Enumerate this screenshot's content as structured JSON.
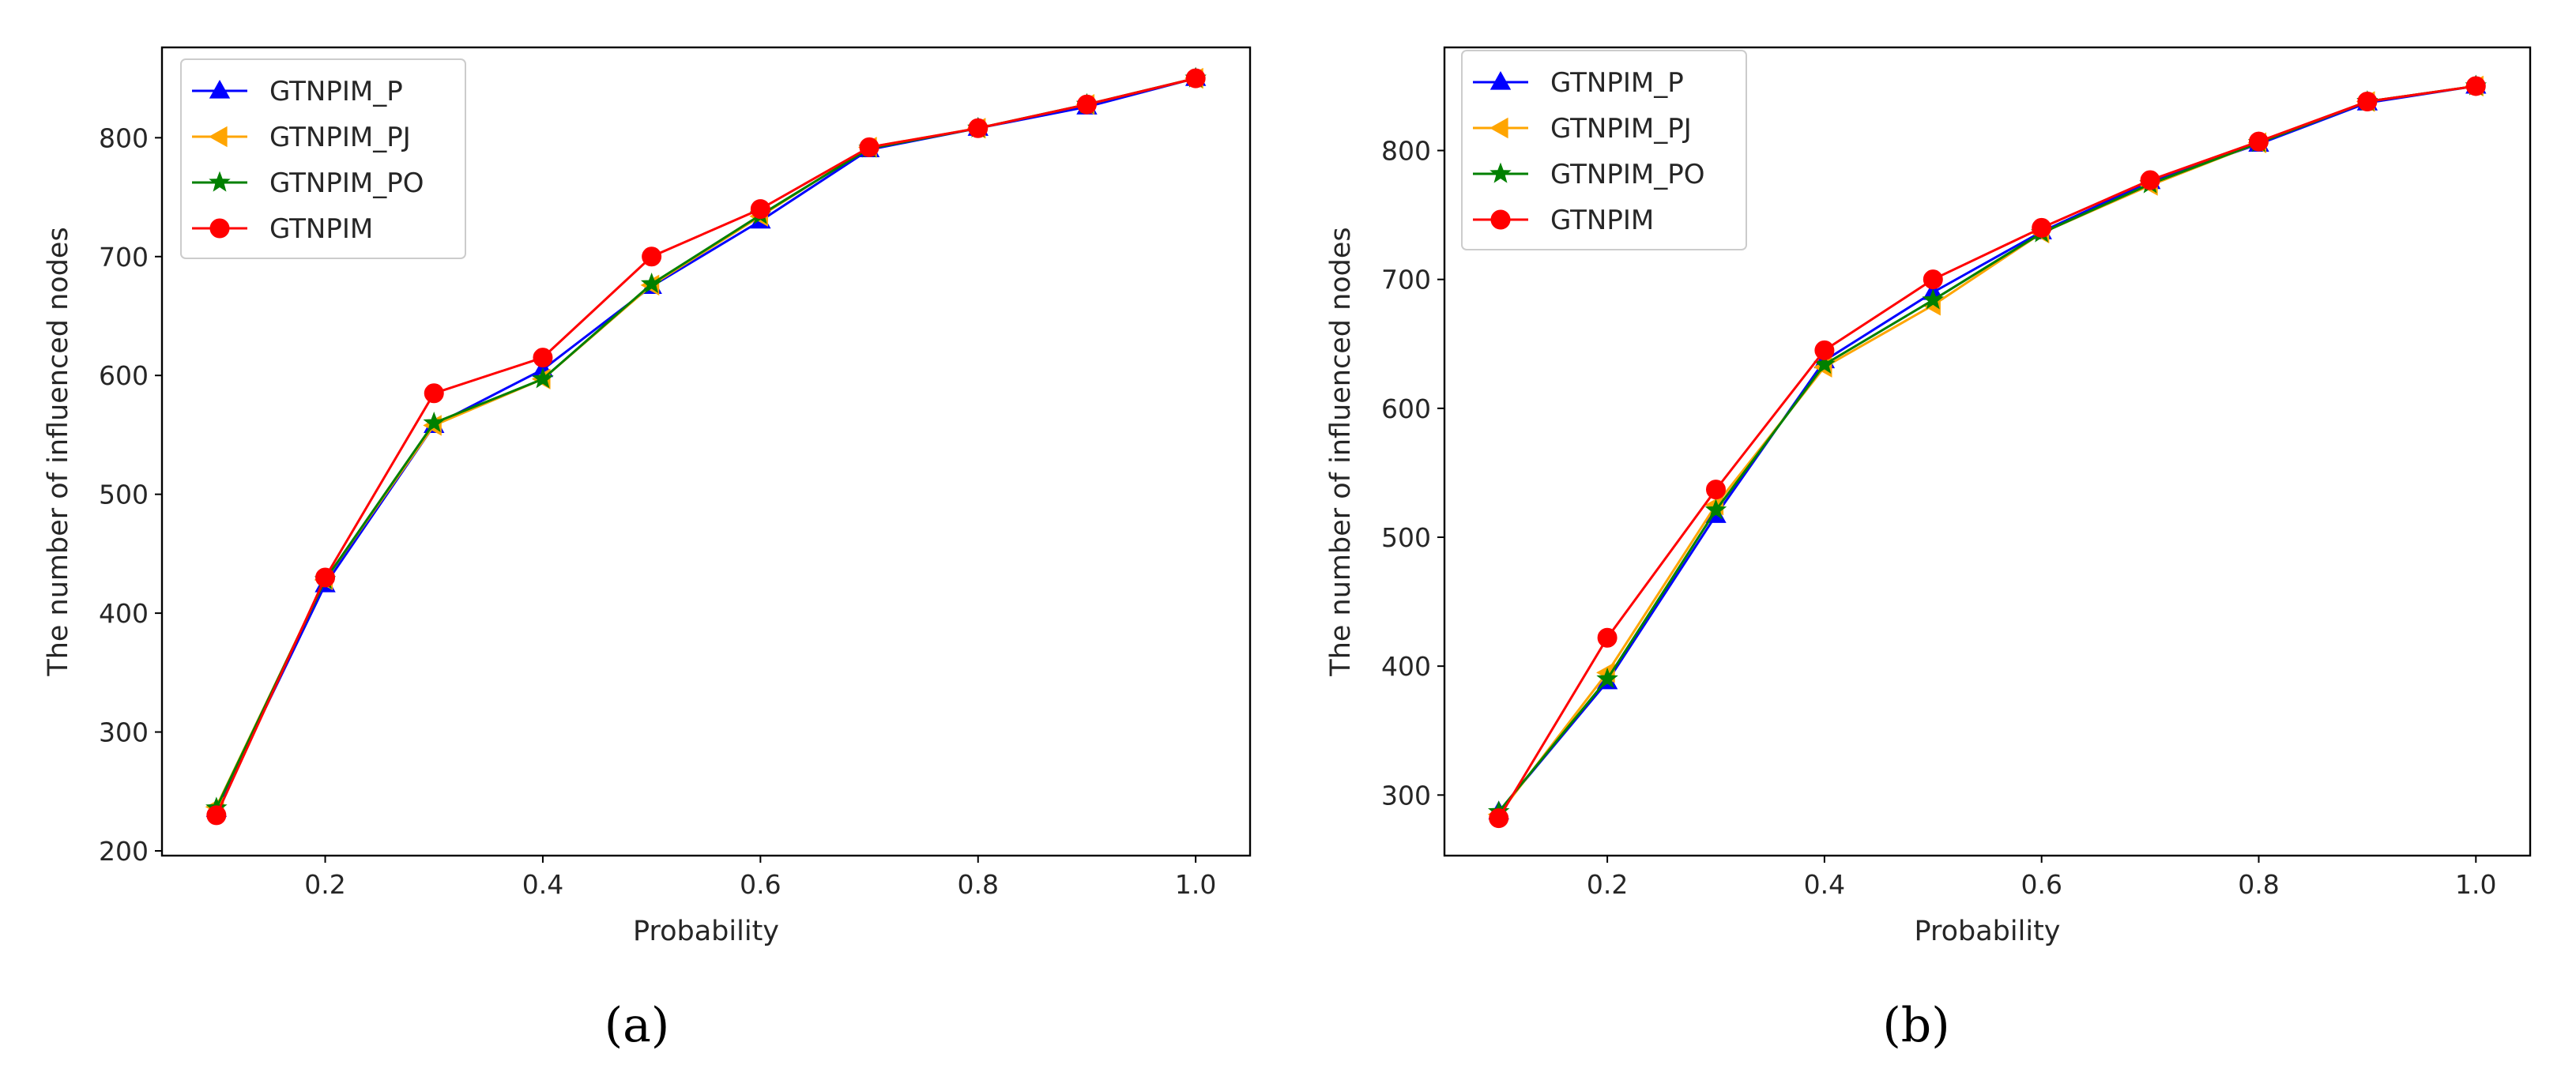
{
  "chart_data": [
    {
      "type": "line",
      "caption": "(a)",
      "xlabel": "Probability",
      "ylabel": "The number of influenced nodes",
      "xlim": [
        0.05,
        1.05
      ],
      "ylim": [
        196,
        876
      ],
      "xticks": [
        0.2,
        0.4,
        0.6,
        0.8,
        1.0
      ],
      "xtick_labels": [
        "0.2",
        "0.4",
        "0.6",
        "0.8",
        "1.0"
      ],
      "yticks": [
        200,
        300,
        400,
        500,
        600,
        700,
        800
      ],
      "ytick_labels": [
        "200",
        "300",
        "400",
        "500",
        "600",
        "700",
        "800"
      ],
      "legend_position": "upper-left",
      "x": [
        0.1,
        0.2,
        0.3,
        0.4,
        0.5,
        0.6,
        0.7,
        0.8,
        0.9,
        1.0
      ],
      "series": [
        {
          "name": "GTNPIM_P",
          "color": "#0000ff",
          "marker": "triangle-up",
          "values": [
            235,
            424,
            558,
            605,
            675,
            730,
            790,
            808,
            826,
            850
          ]
        },
        {
          "name": "GTNPIM_PJ",
          "color": "#ffa500",
          "marker": "triangle-left",
          "values": [
            237,
            428,
            558,
            597,
            676,
            734,
            792,
            808,
            828,
            850
          ]
        },
        {
          "name": "GTNPIM_PO",
          "color": "#008000",
          "marker": "star",
          "values": [
            236,
            428,
            560,
            597,
            677,
            735,
            791,
            808,
            828,
            850
          ]
        },
        {
          "name": "GTNPIM",
          "color": "#ff0000",
          "marker": "circle",
          "values": [
            230,
            430,
            585,
            615,
            700,
            740,
            792,
            808,
            828,
            850
          ]
        }
      ]
    },
    {
      "type": "line",
      "caption": "(b)",
      "xlabel": "Probability",
      "ylabel": "The number of influenced nodes",
      "xlim": [
        0.05,
        1.05
      ],
      "ylim": [
        253,
        880
      ],
      "xticks": [
        0.2,
        0.4,
        0.6,
        0.8,
        1.0
      ],
      "xtick_labels": [
        "0.2",
        "0.4",
        "0.6",
        "0.8",
        "1.0"
      ],
      "yticks": [
        300,
        400,
        500,
        600,
        700,
        800
      ],
      "ytick_labels": [
        "300",
        "400",
        "500",
        "600",
        "700",
        "800"
      ],
      "legend_position": "upper-left",
      "x": [
        0.1,
        0.2,
        0.3,
        0.4,
        0.5,
        0.6,
        0.7,
        0.8,
        0.9,
        1.0
      ],
      "series": [
        {
          "name": "GTNPIM_P",
          "color": "#0000ff",
          "marker": "triangle-up",
          "values": [
            287,
            388,
            517,
            637,
            690,
            737,
            776,
            805,
            837,
            850
          ]
        },
        {
          "name": "GTNPIM_PJ",
          "color": "#ffa500",
          "marker": "triangle-left",
          "values": [
            285,
            395,
            525,
            632,
            680,
            736,
            773,
            806,
            838,
            850
          ]
        },
        {
          "name": "GTNPIM_PO",
          "color": "#008000",
          "marker": "star",
          "values": [
            287,
            390,
            521,
            634,
            684,
            736,
            774,
            806,
            838,
            850
          ]
        },
        {
          "name": "GTNPIM",
          "color": "#ff0000",
          "marker": "circle",
          "values": [
            282,
            422,
            537,
            645,
            700,
            740,
            777,
            807,
            838,
            850
          ]
        }
      ]
    }
  ]
}
